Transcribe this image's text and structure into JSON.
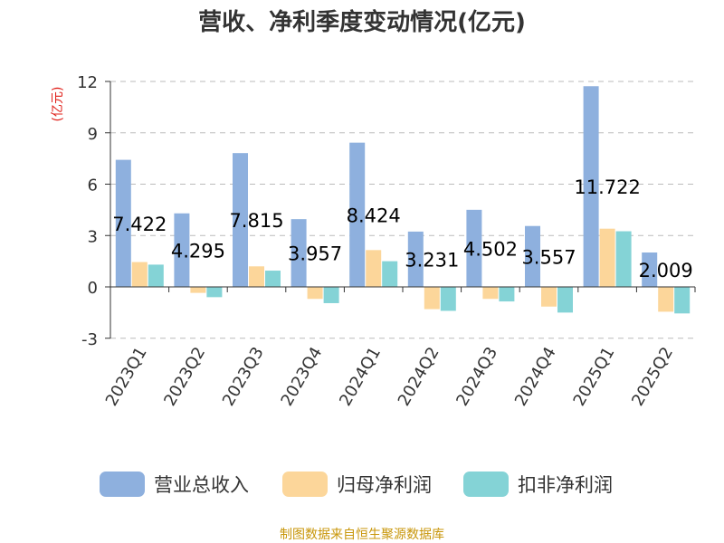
{
  "chart_data": {
    "type": "bar",
    "title": "营收、净利季度变动情况(亿元)",
    "unit_label": "(亿元)",
    "categories": [
      "2023Q1",
      "2023Q2",
      "2023Q3",
      "2023Q4",
      "2024Q1",
      "2024Q2",
      "2024Q3",
      "2024Q4",
      "2025Q1",
      "2025Q2"
    ],
    "series": [
      {
        "name": "营业总收入",
        "color": "#8eb0de",
        "values": [
          7.422,
          4.295,
          7.815,
          3.957,
          8.424,
          3.231,
          4.502,
          3.557,
          11.722,
          2.009
        ],
        "labels": [
          "7.422",
          "4.295",
          "7.815",
          "3.957",
          "8.424",
          "3.231",
          "4.502",
          "3.557",
          "11.722",
          "2.009"
        ]
      },
      {
        "name": "归母净利润",
        "color": "#fcd69a",
        "values": [
          1.45,
          -0.35,
          1.2,
          -0.7,
          2.15,
          -1.3,
          -0.7,
          -1.15,
          3.4,
          -1.45
        ]
      },
      {
        "name": "扣非净利润",
        "color": "#84d3d6",
        "values": [
          1.3,
          -0.6,
          0.95,
          -0.95,
          1.5,
          -1.4,
          -0.85,
          -1.5,
          3.25,
          -1.55
        ]
      }
    ],
    "ylim": [
      -3,
      12
    ],
    "yticks": [
      "-3",
      "0",
      "3",
      "6",
      "9",
      "12"
    ],
    "grid": "horizontal-dashed",
    "legend_position": "bottom"
  },
  "footer": {
    "source": "制图数据来自恒生聚源数据库"
  }
}
